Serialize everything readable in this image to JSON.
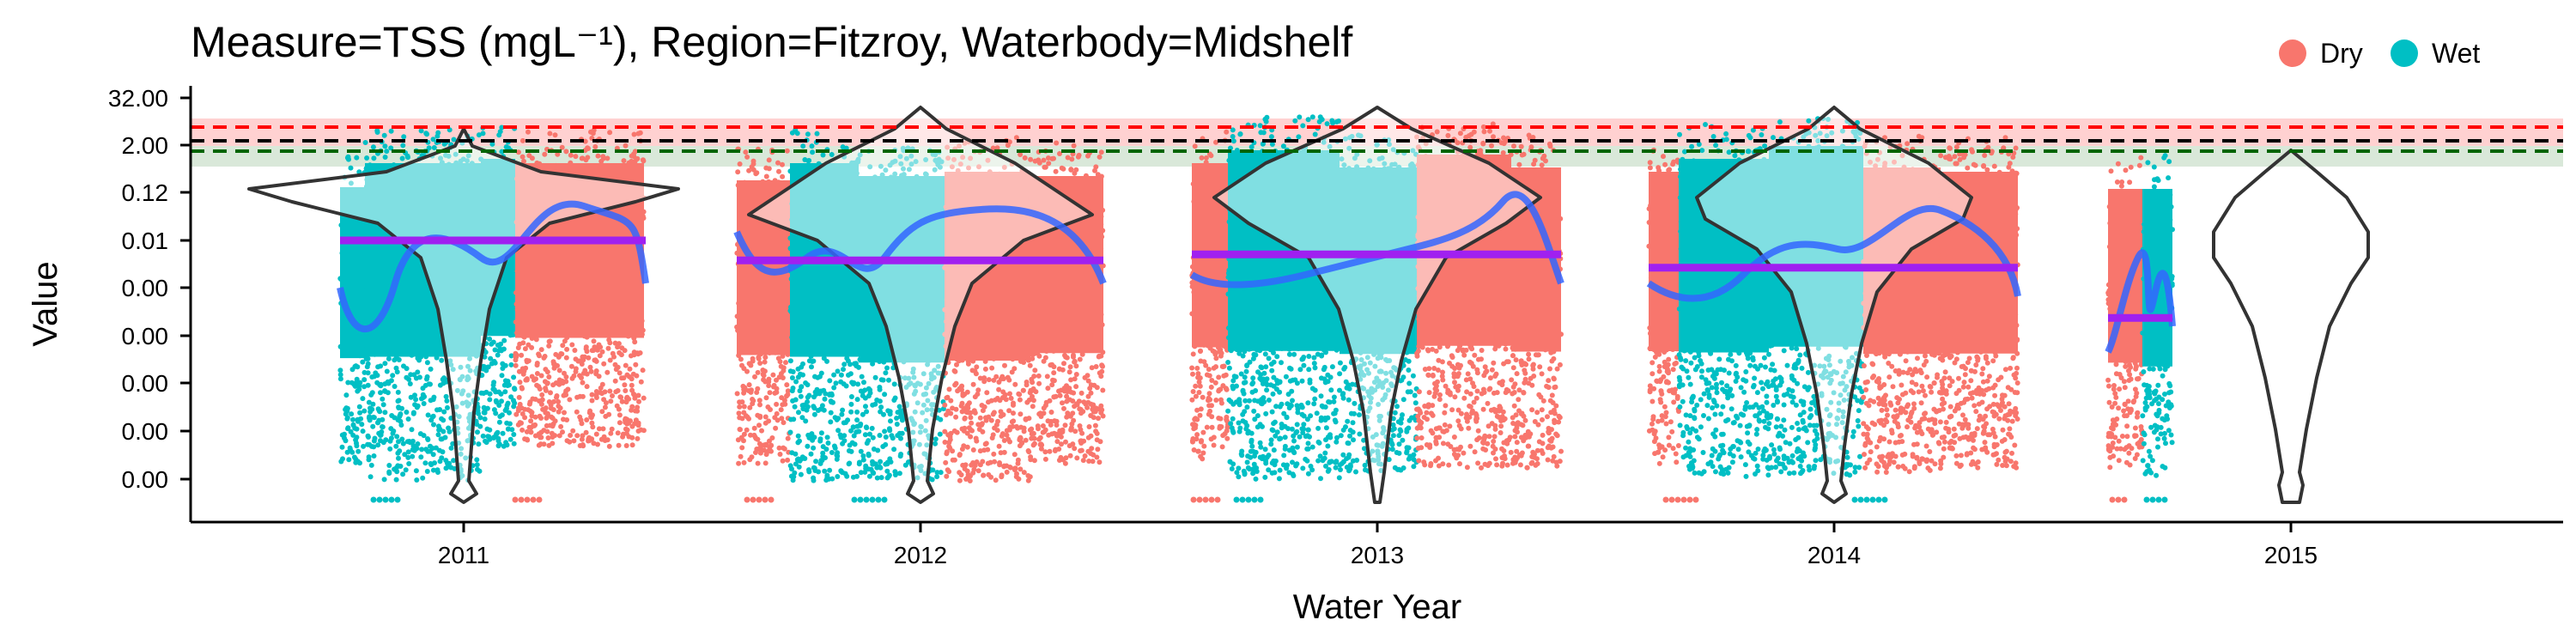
{
  "chart_data": {
    "type": "scatter",
    "title": "Measure=TSS (mgL⁻¹), Region=Fitzroy, Waterbody=Midshelf",
    "xlabel": "Water Year",
    "ylabel": "Value",
    "x_ticks": [
      "2011",
      "2012",
      "2013",
      "2014",
      "2015"
    ],
    "y_ticks": [
      "0.00",
      "0.00",
      "0.00",
      "0.00",
      "0.00",
      "0.01",
      "0.12",
      "2.00",
      "32.00"
    ],
    "y_scale": "log",
    "legend": {
      "position": "top-right",
      "entries": [
        {
          "label": "Dry",
          "color": "#F8766D"
        },
        {
          "label": "Wet",
          "color": "#00BFC4"
        }
      ]
    },
    "colors": {
      "dry": "#F8766D",
      "wet": "#00BFC4",
      "annual_mean": "#A020F0",
      "smoother": "#3366FF",
      "ref_red": "#FF0000",
      "ref_green": "#006400",
      "ref_black": "#000000"
    },
    "reference_lines": [
      {
        "name": "upper",
        "color": "#FF0000",
        "level": 14
      },
      {
        "name": "guideline",
        "color": "#000000",
        "level": 3.5
      },
      {
        "name": "lower",
        "color": "#006400",
        "level": 1.8
      }
    ],
    "years": [
      {
        "year": "2011",
        "annual_mean": 0.01,
        "has_data": true
      },
      {
        "year": "2012",
        "annual_mean": 0.006,
        "has_data": true
      },
      {
        "year": "2013",
        "annual_mean": 0.007,
        "has_data": true
      },
      {
        "year": "2014",
        "annual_mean": 0.005,
        "has_data": true
      },
      {
        "year": "2015",
        "annual_mean": 0.0015,
        "has_data": true
      }
    ]
  }
}
